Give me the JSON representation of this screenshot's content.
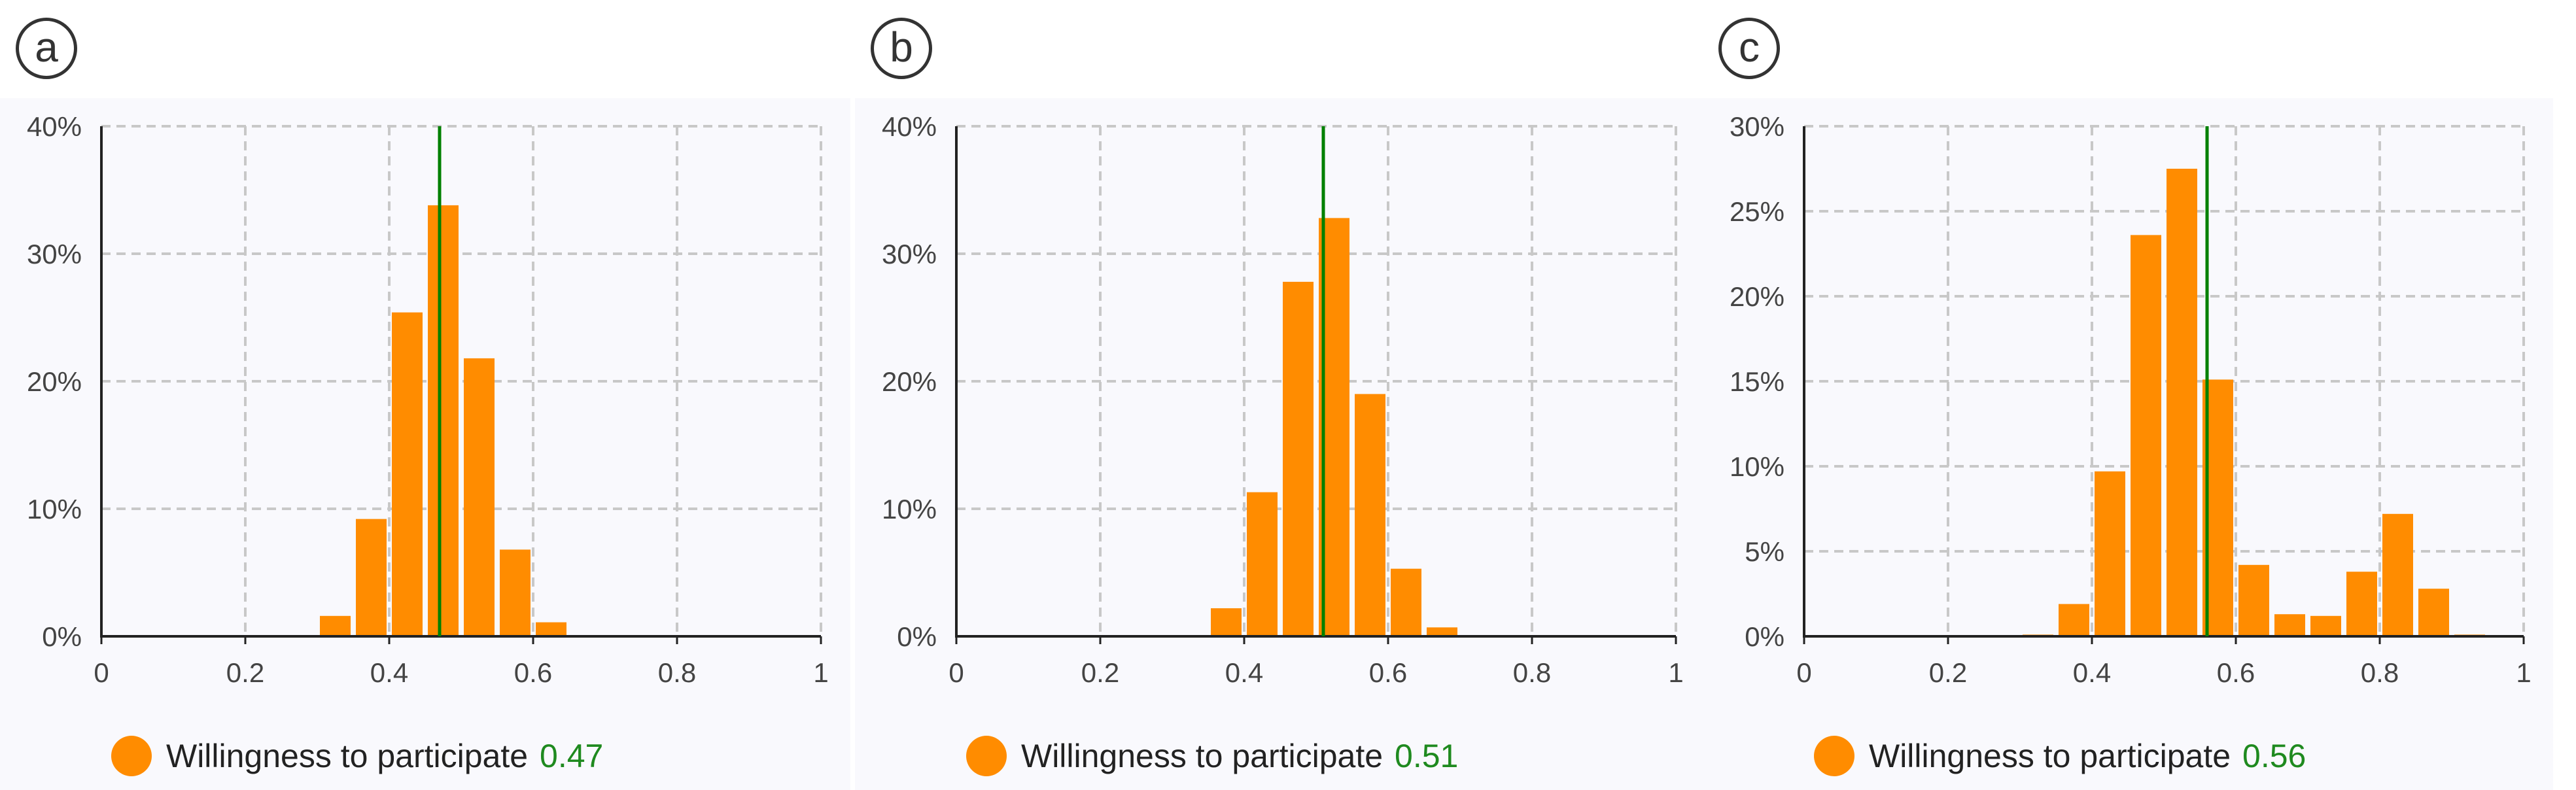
{
  "colors": {
    "bar": "#ff8c00",
    "mean_line": "#008000",
    "value_text": "#1f8a1f"
  },
  "chart_data": [
    {
      "panel": "a",
      "type": "bar",
      "x_ticks": [
        "0",
        "0.2",
        "0.4",
        "0.6",
        "0.8",
        "1"
      ],
      "xlim": [
        0,
        1
      ],
      "y_ticks": [
        "0%",
        "10%",
        "20%",
        "30%",
        "40%"
      ],
      "ylim": [
        0,
        40
      ],
      "grid": true,
      "bins": [
        0.325,
        0.375,
        0.425,
        0.475,
        0.525,
        0.575,
        0.625
      ],
      "values": [
        1.6,
        9.2,
        25.4,
        33.8,
        21.8,
        6.8,
        1.1
      ],
      "mean": 0.47,
      "legend": {
        "label": "Willingness to participate",
        "value": "0.47"
      }
    },
    {
      "panel": "b",
      "type": "bar",
      "x_ticks": [
        "0",
        "0.2",
        "0.4",
        "0.6",
        "0.8",
        "1"
      ],
      "xlim": [
        0,
        1
      ],
      "y_ticks": [
        "0%",
        "10%",
        "20%",
        "30%",
        "40%"
      ],
      "ylim": [
        0,
        40
      ],
      "grid": true,
      "bins": [
        0.325,
        0.375,
        0.425,
        0.475,
        0.525,
        0.575,
        0.625,
        0.675
      ],
      "values": [
        0.1,
        2.2,
        11.3,
        27.8,
        32.8,
        19.0,
        5.3,
        0.7
      ],
      "mean": 0.51,
      "legend": {
        "label": "Willingness to participate",
        "value": "0.51"
      }
    },
    {
      "panel": "c",
      "type": "bar",
      "x_ticks": [
        "0",
        "0.2",
        "0.4",
        "0.6",
        "0.8",
        "1"
      ],
      "xlim": [
        0,
        1
      ],
      "y_ticks": [
        "0%",
        "5%",
        "10%",
        "15%",
        "20%",
        "25%",
        "30%"
      ],
      "ylim": [
        0,
        30
      ],
      "grid": true,
      "bins": [
        0.325,
        0.375,
        0.425,
        0.475,
        0.525,
        0.575,
        0.625,
        0.675,
        0.725,
        0.775,
        0.825,
        0.875,
        0.925
      ],
      "values": [
        0.1,
        1.9,
        9.7,
        23.6,
        27.5,
        15.1,
        4.2,
        1.3,
        1.2,
        3.8,
        7.2,
        2.8,
        0.1
      ],
      "mean": 0.56,
      "legend": {
        "label": "Willingness to participate",
        "value": "0.56"
      }
    }
  ]
}
